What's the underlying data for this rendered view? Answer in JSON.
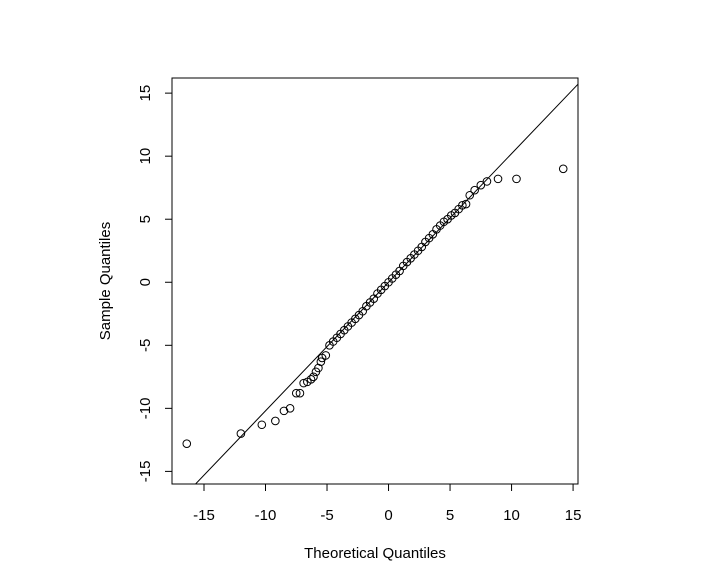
{
  "chart_data": {
    "type": "scatter",
    "x_label": "Theoretical Quantiles",
    "y_label": "Sample Quantiles",
    "xlim": [
      -17.6,
      15.4
    ],
    "ylim": [
      -16.0,
      16.2
    ],
    "xticks": [
      -15,
      -10,
      -5,
      0,
      5,
      10,
      15
    ],
    "yticks": [
      -15,
      -10,
      -5,
      0,
      5,
      10,
      15
    ],
    "color": "#000000",
    "reference_line": {
      "intercept": 0,
      "slope": 1.02
    },
    "series": [
      {
        "name": null,
        "color": "#000000",
        "x": [
          -16.4,
          -12.0,
          -10.3,
          -9.2,
          -8.5,
          -8.0,
          -7.5,
          -7.2,
          -6.9,
          -6.6,
          -6.3,
          -6.1,
          -5.9,
          -5.7,
          -5.5,
          -5.4,
          -5.1,
          -4.8,
          -4.5,
          -4.2,
          -3.9,
          -3.6,
          -3.3,
          -3.0,
          -2.7,
          -2.4,
          -2.1,
          -1.8,
          -1.5,
          -1.2,
          -0.9,
          -0.6,
          -0.3,
          0.0,
          0.3,
          0.6,
          0.9,
          1.2,
          1.5,
          1.8,
          2.1,
          2.4,
          2.7,
          3.0,
          3.3,
          3.6,
          3.9,
          4.2,
          4.5,
          4.8,
          5.1,
          5.4,
          5.7,
          6.0,
          6.3,
          6.6,
          7.0,
          7.5,
          8.0,
          8.9,
          10.4,
          14.2
        ],
        "y": [
          -12.8,
          -12.0,
          -11.3,
          -11.0,
          -10.2,
          -10.0,
          -8.8,
          -8.8,
          -8.0,
          -7.9,
          -7.7,
          -7.5,
          -7.1,
          -6.8,
          -6.3,
          -6.0,
          -5.8,
          -5.0,
          -4.7,
          -4.4,
          -4.1,
          -3.8,
          -3.5,
          -3.2,
          -2.9,
          -2.6,
          -2.3,
          -1.9,
          -1.6,
          -1.3,
          -0.9,
          -0.6,
          -0.3,
          0.0,
          0.3,
          0.6,
          0.9,
          1.3,
          1.6,
          1.9,
          2.2,
          2.5,
          2.8,
          3.2,
          3.5,
          3.8,
          4.2,
          4.5,
          4.8,
          5.0,
          5.3,
          5.5,
          5.8,
          6.1,
          6.2,
          6.9,
          7.3,
          7.7,
          8.0,
          8.2,
          8.2,
          9.0
        ]
      }
    ]
  }
}
